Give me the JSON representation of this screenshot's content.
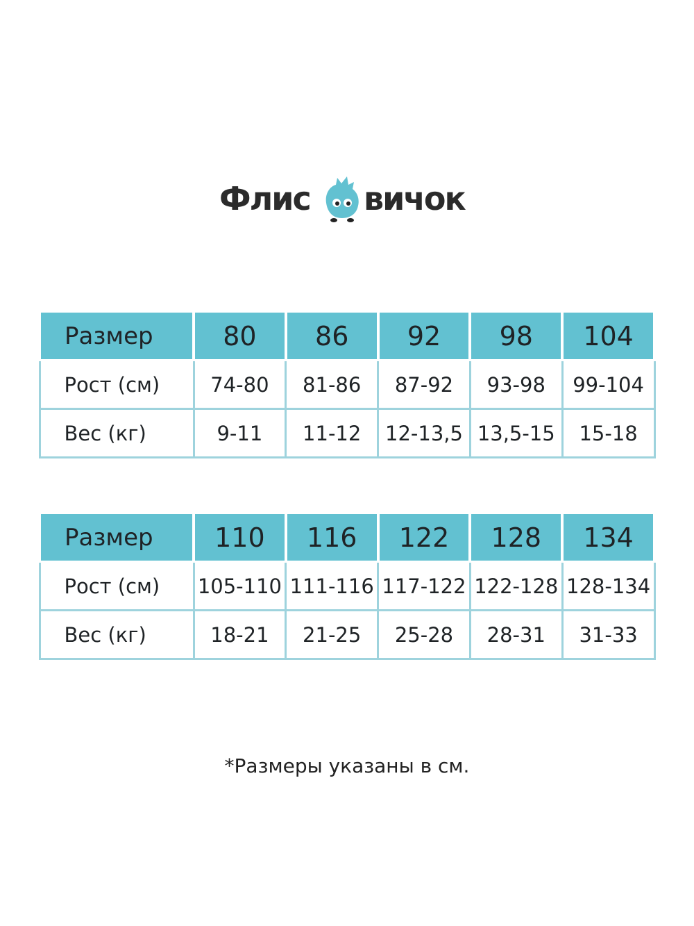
{
  "logo": {
    "text_left": "Флис",
    "text_right": "вичок",
    "mascot_color": "#62c1d1"
  },
  "colors": {
    "header_bg": "#62c1d1",
    "border": "#9ed3dd"
  },
  "tables": [
    {
      "header": {
        "label": "Размер",
        "sizes": [
          "80",
          "86",
          "92",
          "98",
          "104"
        ]
      },
      "rows": [
        {
          "label": "Рост (см)",
          "values": [
            "74-80",
            "81-86",
            "87-92",
            "93-98",
            "99-104"
          ]
        },
        {
          "label": "Вес (кг)",
          "values": [
            "9-11",
            "11-12",
            "12-13,5",
            "13,5-15",
            "15-18"
          ]
        }
      ]
    },
    {
      "header": {
        "label": "Размер",
        "sizes": [
          "110",
          "116",
          "122",
          "128",
          "134"
        ]
      },
      "rows": [
        {
          "label": "Рост (см)",
          "values": [
            "105-110",
            "111-116",
            "117-122",
            "122-128",
            "128-134"
          ]
        },
        {
          "label": "Вес (кг)",
          "values": [
            "18-21",
            "21-25",
            "25-28",
            "28-31",
            "31-33"
          ]
        }
      ]
    }
  ],
  "note": "*Размеры указаны в см."
}
